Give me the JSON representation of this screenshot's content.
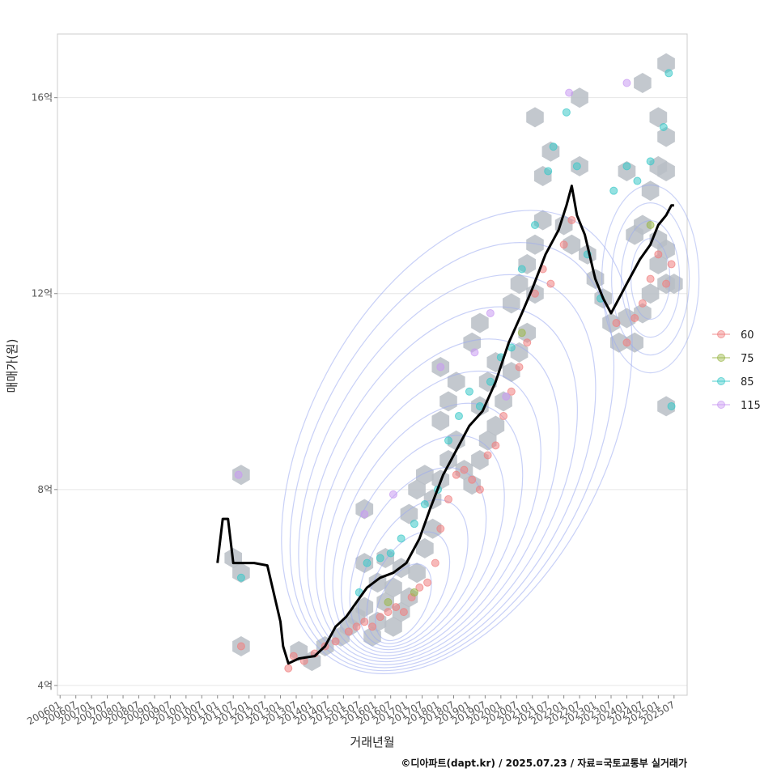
{
  "chart_data": {
    "type": "scatter",
    "xlabel": "거래년월",
    "ylabel": "매매가(원)",
    "caption": "©디아파트(dapt.kr) / 2025.07.23 / 자료=국토교통부 실거래가",
    "x_range": [
      "2005-12",
      "2025-12"
    ],
    "ylim": [
      3.8,
      17.3
    ],
    "y_ticks": [
      {
        "value": 4,
        "label": "4억"
      },
      {
        "value": 8,
        "label": "8억"
      },
      {
        "value": 12,
        "label": "12억"
      },
      {
        "value": 16,
        "label": "16억"
      }
    ],
    "x_ticks": [
      "200601",
      "200607",
      "200701",
      "200707",
      "200801",
      "200807",
      "200901",
      "200907",
      "201001",
      "201007",
      "201101",
      "201107",
      "201201",
      "201207",
      "201301",
      "201307",
      "201401",
      "201407",
      "201501",
      "201507",
      "201601",
      "201607",
      "201701",
      "201707",
      "201801",
      "201807",
      "201901",
      "201907",
      "202001",
      "202007",
      "202101",
      "202107",
      "202201",
      "202207",
      "202301",
      "202307",
      "202401",
      "202407",
      "202501",
      "202507"
    ],
    "grid": true,
    "legend": {
      "position": "right",
      "entries": [
        {
          "label": "60",
          "color": "#f08080"
        },
        {
          "label": "75",
          "color": "#9bb84a"
        },
        {
          "label": "85",
          "color": "#3cc9c9"
        },
        {
          "label": "115",
          "color": "#c99af2"
        }
      ]
    },
    "colors": {
      "hexbin": "#b8bec6",
      "density": "#9aaaf0",
      "trend": "#000000"
    },
    "trend_line": {
      "name": "",
      "x": [
        "2011-01",
        "2011-03",
        "2011-05",
        "2011-07",
        "2011-10",
        "2012-03",
        "2012-08",
        "2013-01",
        "2013-02",
        "2013-04",
        "2013-08",
        "2014-02",
        "2014-06",
        "2014-10",
        "2015-02",
        "2015-06",
        "2015-10",
        "2016-03",
        "2016-08",
        "2017-01",
        "2017-06",
        "2017-10",
        "2018-03",
        "2018-08",
        "2019-01",
        "2019-06",
        "2019-11",
        "2020-04",
        "2020-09",
        "2021-01",
        "2021-06",
        "2021-11",
        "2022-02",
        "2022-04",
        "2022-06",
        "2022-09",
        "2023-01",
        "2023-04",
        "2023-07",
        "2023-11",
        "2024-01",
        "2024-03",
        "2024-06",
        "2024-10",
        "2025-01",
        "2025-04",
        "2025-06",
        "2025-07"
      ],
      "y": [
        6.5,
        7.4,
        7.4,
        6.5,
        6.5,
        6.5,
        6.45,
        5.3,
        4.8,
        4.45,
        4.55,
        4.6,
        4.8,
        5.2,
        5.4,
        5.7,
        6.0,
        6.2,
        6.3,
        6.5,
        7.0,
        7.6,
        8.3,
        8.8,
        9.3,
        9.6,
        10.2,
        11.0,
        11.6,
        12.1,
        12.8,
        13.3,
        13.8,
        14.2,
        13.6,
        13.2,
        12.3,
        11.9,
        11.6,
        12.0,
        12.2,
        12.4,
        12.7,
        13.0,
        13.4,
        13.6,
        13.8,
        13.8
      ]
    },
    "series": [
      {
        "name": "60",
        "points": [
          [
            "2011-10",
            4.8
          ],
          [
            "2013-04",
            4.35
          ],
          [
            "2013-06",
            4.6
          ],
          [
            "2013-10",
            4.5
          ],
          [
            "2014-02",
            4.65
          ],
          [
            "2014-06",
            4.8
          ],
          [
            "2014-10",
            4.9
          ],
          [
            "2015-03",
            5.1
          ],
          [
            "2015-06",
            5.2
          ],
          [
            "2015-09",
            5.3
          ],
          [
            "2015-12",
            5.2
          ],
          [
            "2016-03",
            5.4
          ],
          [
            "2016-06",
            5.5
          ],
          [
            "2016-09",
            5.6
          ],
          [
            "2016-12",
            5.5
          ],
          [
            "2017-03",
            5.8
          ],
          [
            "2017-06",
            6.0
          ],
          [
            "2017-09",
            6.1
          ],
          [
            "2017-12",
            6.5
          ],
          [
            "2018-02",
            7.2
          ],
          [
            "2018-05",
            7.8
          ],
          [
            "2018-08",
            8.3
          ],
          [
            "2018-11",
            8.4
          ],
          [
            "2019-02",
            8.2
          ],
          [
            "2019-05",
            8.0
          ],
          [
            "2019-08",
            8.7
          ],
          [
            "2019-11",
            8.9
          ],
          [
            "2020-02",
            9.5
          ],
          [
            "2020-05",
            10.0
          ],
          [
            "2020-08",
            10.5
          ],
          [
            "2020-11",
            11.0
          ],
          [
            "2021-02",
            12.0
          ],
          [
            "2021-05",
            12.5
          ],
          [
            "2021-08",
            12.2
          ],
          [
            "2022-01",
            13.0
          ],
          [
            "2022-04",
            13.5
          ],
          [
            "2023-09",
            11.4
          ],
          [
            "2024-01",
            11.0
          ],
          [
            "2024-04",
            11.5
          ],
          [
            "2024-07",
            11.8
          ],
          [
            "2024-10",
            12.3
          ],
          [
            "2025-01",
            12.8
          ],
          [
            "2025-04",
            12.2
          ],
          [
            "2025-06",
            12.6
          ]
        ]
      },
      {
        "name": "75",
        "points": [
          [
            "2016-06",
            5.7
          ],
          [
            "2017-04",
            5.9
          ],
          [
            "2020-09",
            11.2
          ],
          [
            "2024-10",
            13.4
          ]
        ]
      },
      {
        "name": "85",
        "points": [
          [
            "2011-10",
            6.2
          ],
          [
            "2015-07",
            5.9
          ],
          [
            "2015-10",
            6.5
          ],
          [
            "2016-03",
            6.6
          ],
          [
            "2016-07",
            6.7
          ],
          [
            "2016-11",
            7.0
          ],
          [
            "2017-04",
            7.3
          ],
          [
            "2017-08",
            7.7
          ],
          [
            "2018-01",
            8.0
          ],
          [
            "2018-05",
            9.0
          ],
          [
            "2018-09",
            9.5
          ],
          [
            "2019-01",
            10.0
          ],
          [
            "2019-05",
            9.7
          ],
          [
            "2019-09",
            10.2
          ],
          [
            "2020-01",
            10.7
          ],
          [
            "2020-05",
            10.9
          ],
          [
            "2020-09",
            12.5
          ],
          [
            "2021-02",
            13.4
          ],
          [
            "2021-07",
            14.5
          ],
          [
            "2021-09",
            15.0
          ],
          [
            "2022-02",
            15.7
          ],
          [
            "2022-06",
            14.6
          ],
          [
            "2022-10",
            12.8
          ],
          [
            "2023-03",
            11.9
          ],
          [
            "2023-08",
            14.1
          ],
          [
            "2024-01",
            14.6
          ],
          [
            "2024-05",
            14.3
          ],
          [
            "2024-10",
            14.7
          ],
          [
            "2025-03",
            15.4
          ],
          [
            "2025-05",
            16.5
          ],
          [
            "2025-06",
            9.7
          ]
        ]
      },
      {
        "name": "115",
        "points": [
          [
            "2011-09",
            8.3
          ],
          [
            "2015-09",
            7.5
          ],
          [
            "2016-08",
            7.9
          ],
          [
            "2018-02",
            10.5
          ],
          [
            "2019-03",
            10.8
          ],
          [
            "2019-09",
            11.6
          ],
          [
            "2020-03",
            9.9
          ],
          [
            "2022-03",
            16.1
          ],
          [
            "2024-01",
            16.3
          ]
        ]
      }
    ],
    "hexbins": [
      [
        "2011-07",
        6.6
      ],
      [
        "2011-10",
        6.3
      ],
      [
        "2011-10",
        4.8
      ],
      [
        "2011-10",
        8.3
      ],
      [
        "2013-08",
        4.7
      ],
      [
        "2014-01",
        4.5
      ],
      [
        "2014-06",
        4.8
      ],
      [
        "2014-12",
        5.0
      ],
      [
        "2015-03",
        5.2
      ],
      [
        "2015-06",
        5.4
      ],
      [
        "2015-09",
        5.6
      ],
      [
        "2015-09",
        6.5
      ],
      [
        "2015-09",
        7.6
      ],
      [
        "2015-12",
        5.0
      ],
      [
        "2016-02",
        5.3
      ],
      [
        "2016-05",
        5.7
      ],
      [
        "2016-08",
        6.0
      ],
      [
        "2016-11",
        6.4
      ],
      [
        "2016-02",
        6.1
      ],
      [
        "2016-05",
        6.6
      ],
      [
        "2016-08",
        5.2
      ],
      [
        "2016-11",
        5.5
      ],
      [
        "2017-02",
        5.8
      ],
      [
        "2017-05",
        6.3
      ],
      [
        "2017-08",
        6.8
      ],
      [
        "2017-11",
        7.2
      ],
      [
        "2017-02",
        7.5
      ],
      [
        "2017-05",
        8.0
      ],
      [
        "2017-08",
        8.3
      ],
      [
        "2017-11",
        7.8
      ],
      [
        "2018-02",
        8.2
      ],
      [
        "2018-05",
        8.6
      ],
      [
        "2018-08",
        9.0
      ],
      [
        "2018-02",
        9.4
      ],
      [
        "2018-05",
        9.8
      ],
      [
        "2018-08",
        10.2
      ],
      [
        "2018-02",
        10.5
      ],
      [
        "2018-11",
        8.4
      ],
      [
        "2019-02",
        8.1
      ],
      [
        "2019-05",
        8.6
      ],
      [
        "2019-08",
        9.0
      ],
      [
        "2019-11",
        9.3
      ],
      [
        "2019-05",
        9.7
      ],
      [
        "2019-08",
        10.2
      ],
      [
        "2019-11",
        10.6
      ],
      [
        "2019-02",
        11.0
      ],
      [
        "2019-05",
        11.4
      ],
      [
        "2020-02",
        9.8
      ],
      [
        "2020-05",
        10.4
      ],
      [
        "2020-08",
        10.8
      ],
      [
        "2020-11",
        11.2
      ],
      [
        "2020-05",
        11.8
      ],
      [
        "2020-08",
        12.2
      ],
      [
        "2020-11",
        12.6
      ],
      [
        "2021-02",
        12.0
      ],
      [
        "2021-02",
        13.0
      ],
      [
        "2021-05",
        13.5
      ],
      [
        "2021-05",
        14.4
      ],
      [
        "2021-08",
        14.9
      ],
      [
        "2021-02",
        15.6
      ],
      [
        "2022-01",
        13.4
      ],
      [
        "2022-04",
        13.0
      ],
      [
        "2022-07",
        14.6
      ],
      [
        "2022-07",
        16.0
      ],
      [
        "2022-10",
        12.8
      ],
      [
        "2023-01",
        12.3
      ],
      [
        "2023-04",
        11.9
      ],
      [
        "2023-07",
        11.4
      ],
      [
        "2023-10",
        11.0
      ],
      [
        "2024-01",
        11.5
      ],
      [
        "2024-04",
        11.0
      ],
      [
        "2024-07",
        11.6
      ],
      [
        "2024-10",
        12.0
      ],
      [
        "2024-01",
        14.5
      ],
      [
        "2024-04",
        13.2
      ],
      [
        "2024-07",
        13.4
      ],
      [
        "2024-07",
        16.3
      ],
      [
        "2024-10",
        14.1
      ],
      [
        "2025-01",
        12.6
      ],
      [
        "2025-01",
        13.1
      ],
      [
        "2025-04",
        12.2
      ],
      [
        "2025-04",
        12.9
      ],
      [
        "2025-07",
        12.2
      ],
      [
        "2025-01",
        14.6
      ],
      [
        "2025-04",
        15.2
      ],
      [
        "2025-01",
        15.6
      ],
      [
        "2025-04",
        14.5
      ],
      [
        "2025-04",
        16.7
      ],
      [
        "2025-04",
        9.7
      ]
    ],
    "density_contours": {
      "center": [
        "2016-10",
        5.4
      ],
      "levels": 12
    }
  }
}
